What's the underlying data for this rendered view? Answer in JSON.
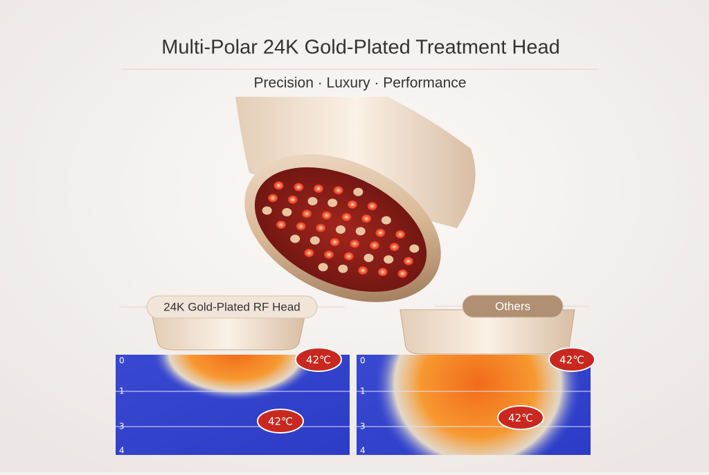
{
  "header": {
    "title": "Multi-Polar 24K Gold-Plated Treatment Head",
    "subtitle": "Precision · Luxury · Performance"
  },
  "panels": [
    {
      "label": "24K Gold-Plated RF Head",
      "depth_labels": [
        "0",
        "1",
        "3",
        "4"
      ],
      "temperatures": [
        "42℃",
        "42℃"
      ]
    },
    {
      "label": "Others",
      "depth_labels": [
        "0",
        "1",
        "3",
        "4"
      ],
      "temperatures": [
        "42℃",
        "42℃"
      ]
    }
  ]
}
